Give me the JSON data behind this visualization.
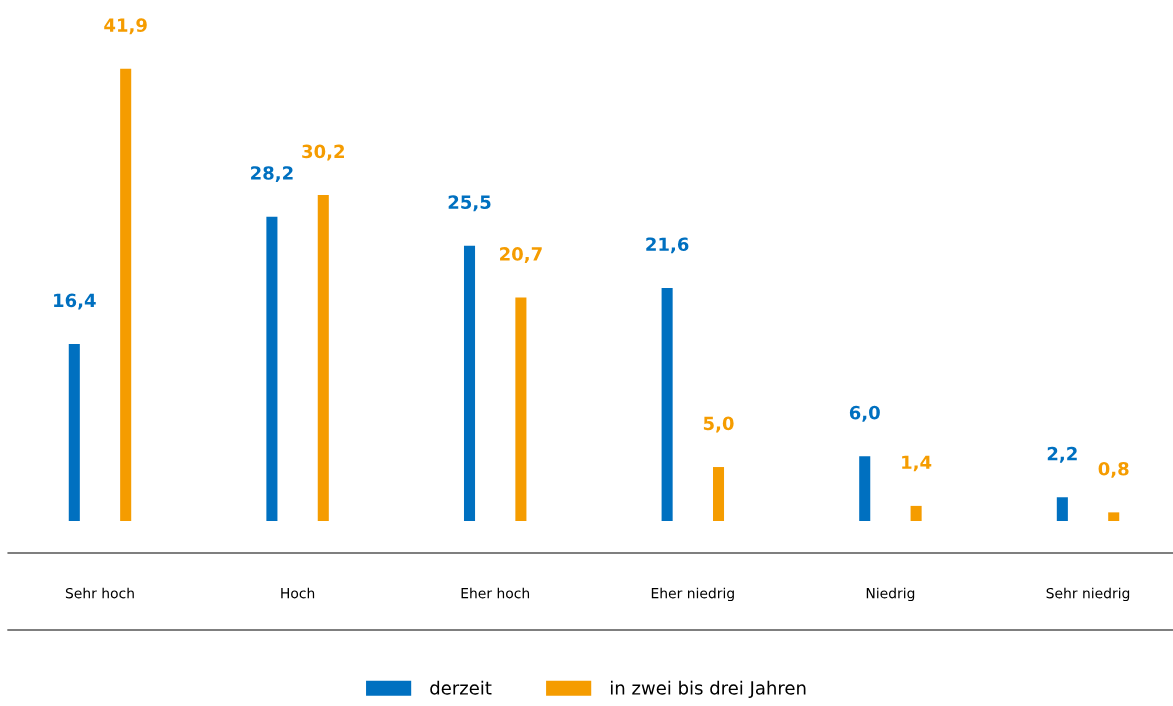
{
  "chart_data": {
    "type": "bar",
    "categories": [
      "Sehr hoch",
      "Hoch",
      "Eher hoch",
      "Eher niedrig",
      "Niedrig",
      "Sehr niedrig"
    ],
    "series": [
      {
        "name": "derzeit",
        "color": "#0070c0",
        "values": [
          16.4,
          28.2,
          25.5,
          21.6,
          6.0,
          2.2
        ],
        "value_labels": [
          "16,4",
          "28,2",
          "25,5",
          "21,6",
          "6,0",
          "2,2"
        ]
      },
      {
        "name": "in zwei bis drei Jahren",
        "color": "#f59c00",
        "values": [
          41.9,
          30.2,
          20.7,
          5.0,
          1.4,
          0.8
        ],
        "value_labels": [
          "41,9",
          "30,2",
          "20,7",
          "5,0",
          "1,4",
          "0,8"
        ]
      }
    ],
    "legend": "bottom",
    "grid": false
  }
}
